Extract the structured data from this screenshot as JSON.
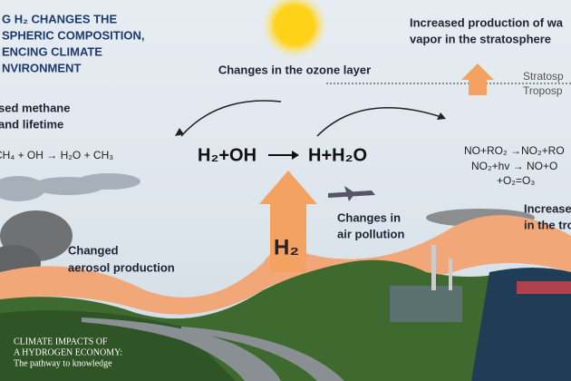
{
  "title": {
    "lines": [
      "G H₂ CHANGES THE",
      "SPHERIC COMPOSITION,",
      "ENCING CLIMATE",
      "NVIRONMENT"
    ]
  },
  "labels": {
    "stratosphere_vapor": [
      "Increased production of wa",
      "vapor in the stratosphere"
    ],
    "ozone": [
      "Changes in the ozone layer"
    ],
    "layers": [
      "Stratosp",
      "Troposp"
    ],
    "methane": [
      "sed methane",
      "and lifetime"
    ],
    "methane_reaction": [
      "CH₄ + OH → H₂O + CH₃"
    ],
    "main_reactants": "H₂+OH",
    "main_products": "H+H₂O",
    "no_reactions": [
      "NO+RO₂ →NO₂+RO",
      "NO₂+hv → NO+O",
      "+O₂=O₃"
    ],
    "troposphere": [
      "Increased",
      "in the tropos"
    ],
    "air_pollution": [
      "Changes in",
      "air pollution"
    ],
    "h2": "H₂",
    "aerosol": [
      "Changed",
      "aerosol production"
    ],
    "footer": [
      "CLIMATE IMPACTS OF",
      "A HYDROGEN ECONOMY:",
      "The pathway to knowledge"
    ]
  }
}
